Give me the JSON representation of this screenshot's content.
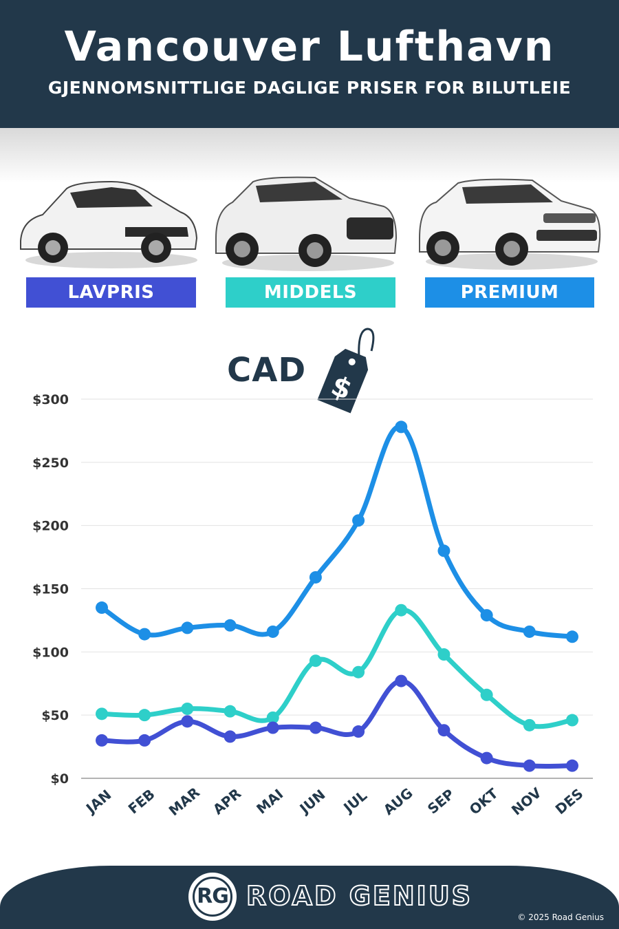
{
  "header": {
    "title": "Vancouver Lufthavn",
    "subtitle": "GJENNOMSNITTLIGE DAGLIGE PRISER FOR BILUTLEIE"
  },
  "categories": [
    {
      "label": "LAVPRIS",
      "color": "#4150d4"
    },
    {
      "label": "MIDDELS",
      "color": "#2ecfc9"
    },
    {
      "label": "PREMIUM",
      "color": "#1d8fe6"
    }
  ],
  "currency": {
    "code": "CAD",
    "tag_symbol": "$"
  },
  "chart_data": {
    "type": "line",
    "categories": [
      "JAN",
      "FEB",
      "MAR",
      "APR",
      "MAI",
      "JUN",
      "JUL",
      "AUG",
      "SEP",
      "OKT",
      "NOV",
      "DES"
    ],
    "series": [
      {
        "name": "PREMIUM",
        "color": "#1d8fe6",
        "values": [
          135,
          114,
          119,
          121,
          116,
          159,
          204,
          278,
          180,
          129,
          116,
          112
        ]
      },
      {
        "name": "MIDDELS",
        "color": "#2ecfc9",
        "values": [
          51,
          50,
          55,
          53,
          48,
          93,
          84,
          133,
          98,
          66,
          42,
          46
        ]
      },
      {
        "name": "LAVPRIS",
        "color": "#4150d4",
        "values": [
          30,
          30,
          45,
          33,
          40,
          40,
          37,
          77,
          38,
          16,
          10,
          10
        ]
      }
    ],
    "yticks": [
      "$0",
      "$50",
      "$100",
      "$150",
      "$200",
      "$250",
      "$300"
    ],
    "ylim": [
      0,
      300
    ],
    "grid": true
  },
  "footer": {
    "logo": "RG",
    "brand": "ROAD GENIUS",
    "copyright": "© 2025 Road Genius"
  }
}
